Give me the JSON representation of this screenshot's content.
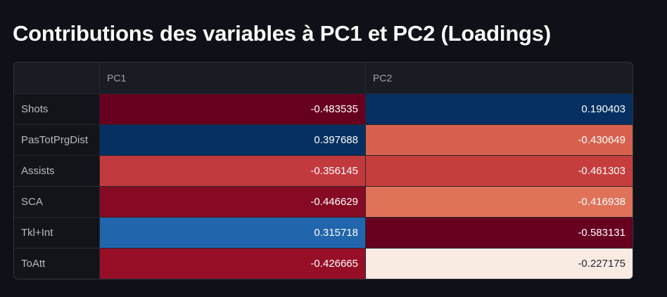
{
  "title": "Contributions des variables à PC1 et PC2 (Loadings)",
  "table": {
    "columns": [
      "",
      "PC1",
      "PC2"
    ],
    "rows": [
      {
        "label": "Shots",
        "pc1": "-0.483535",
        "pc2": "0.190403",
        "pc1_color": "#67001f",
        "pc2_color": "#053061",
        "pc1_text": "#ffffff",
        "pc2_text": "#ffffff"
      },
      {
        "label": "PasTotPrgDist",
        "pc1": "0.397688",
        "pc2": "-0.430649",
        "pc1_color": "#053061",
        "pc2_color": "#d6604d",
        "pc1_text": "#ffffff",
        "pc2_text": "#ffffff"
      },
      {
        "label": "Assists",
        "pc1": "-0.356145",
        "pc2": "-0.461303",
        "pc1_color": "#c33a3e",
        "pc2_color": "#c53e3d",
        "pc1_text": "#ffffff",
        "pc2_text": "#ffffff"
      },
      {
        "label": "SCA",
        "pc1": "-0.446629",
        "pc2": "-0.416938",
        "pc1_color": "#860a23",
        "pc2_color": "#e0725a",
        "pc1_text": "#ffffff",
        "pc2_text": "#ffffff"
      },
      {
        "label": "Tkl+Int",
        "pc1": "0.315718",
        "pc2": "-0.583131",
        "pc1_color": "#2166ac",
        "pc2_color": "#67001f",
        "pc1_text": "#ffffff",
        "pc2_text": "#ffffff"
      },
      {
        "label": "ToAtt",
        "pc1": "-0.426665",
        "pc2": "-0.227175",
        "pc1_color": "#960f26",
        "pc2_color": "#f9ebe2",
        "pc1_text": "#ffffff",
        "pc2_text": "#262730"
      }
    ]
  }
}
